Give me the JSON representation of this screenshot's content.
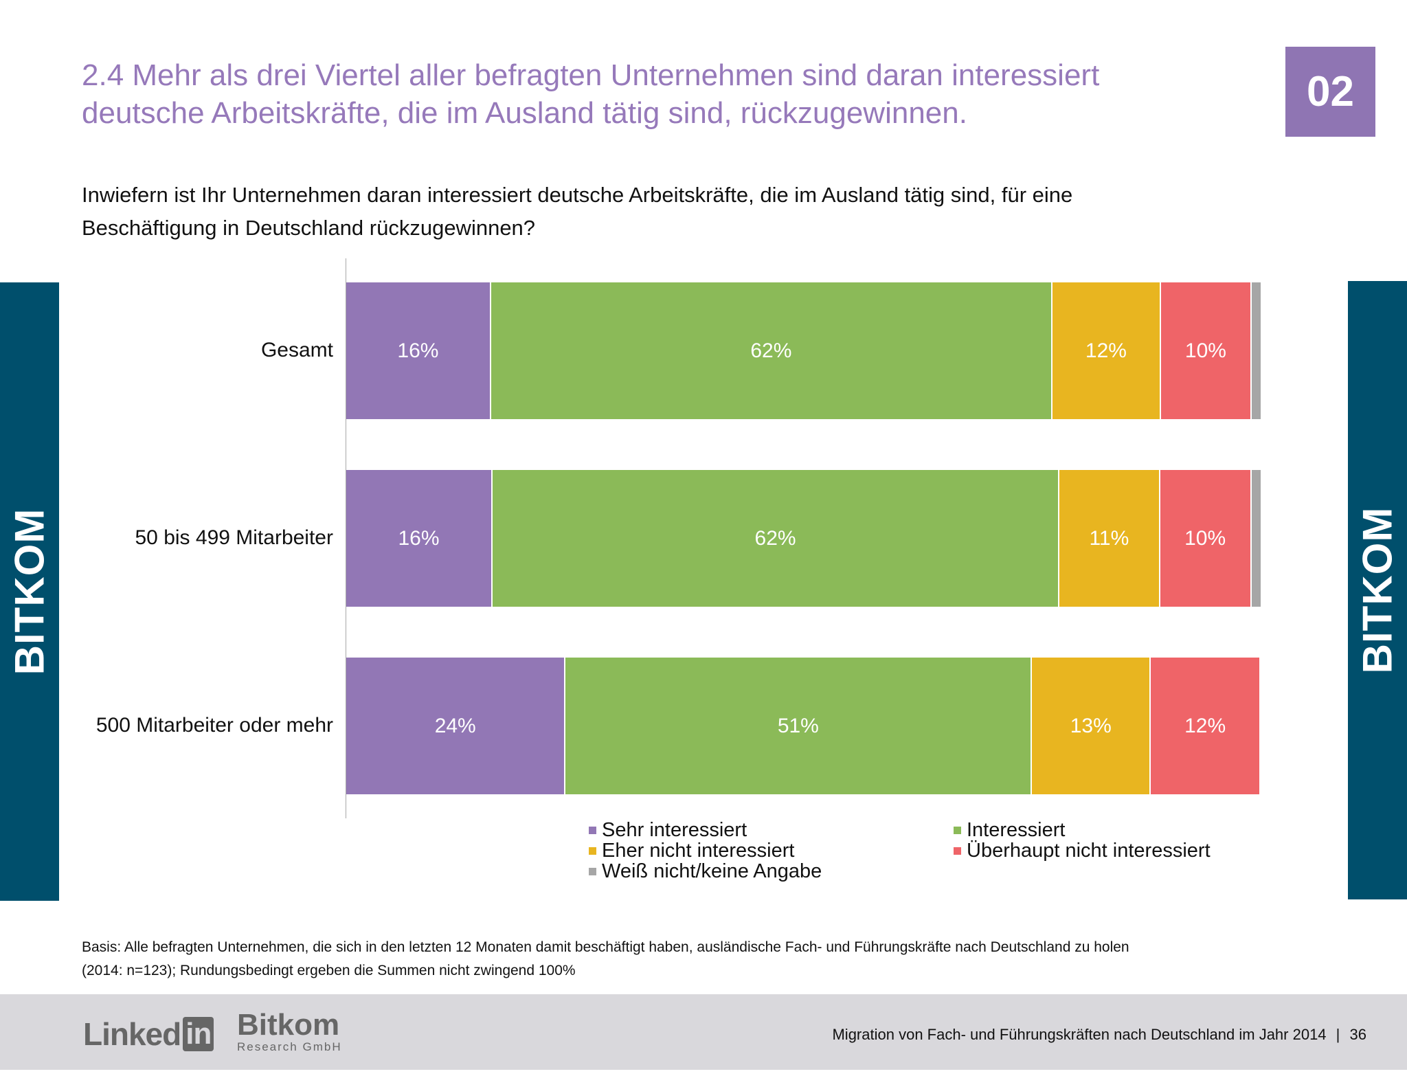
{
  "header": {
    "title_line1": "2.4 Mehr als drei Viertel aller befragten Unternehmen sind daran interessiert",
    "title_line2": "deutsche Arbeitskräfte, die im Ausland tätig sind, rückzugewinnen.",
    "badge": "02"
  },
  "question_line1": "Inwiefern ist Ihr Unternehmen daran interessiert deutsche Arbeitskräfte, die im Ausland tätig sind, für eine",
  "question_line2": "Beschäftigung in Deutschland rückzugewinnen?",
  "sidebar_left": "BITKOM",
  "sidebar_right": "BITKOM",
  "chart_data": {
    "type": "bar",
    "orientation": "horizontal-stacked",
    "categories": [
      "Gesamt",
      "50 bis 499 Mitarbeiter",
      "500 Mitarbeiter oder mehr"
    ],
    "series": [
      {
        "name": "Sehr interessiert",
        "color": "#9277b5",
        "values": [
          16,
          16,
          24
        ],
        "labels": [
          "16%",
          "16%",
          "24%"
        ]
      },
      {
        "name": "Interessiert",
        "color": "#8bba58",
        "values": [
          62,
          62,
          51
        ],
        "labels": [
          "62%",
          "62%",
          "51%"
        ]
      },
      {
        "name": "Eher nicht interessiert",
        "color": "#e8b520",
        "values": [
          12,
          11,
          13
        ],
        "labels": [
          "12%",
          "11%",
          "13%"
        ]
      },
      {
        "name": "Überhaupt nicht interessiert",
        "color": "#ef6468",
        "values": [
          10,
          10,
          12
        ],
        "labels": [
          "10%",
          "10%",
          "12%"
        ]
      },
      {
        "name": "Weiß nicht/keine Angabe",
        "color": "#a6a6a6",
        "values": [
          1,
          1,
          0
        ],
        "labels": [
          "",
          "",
          ""
        ]
      }
    ],
    "legend_placement": "bottom",
    "grid": false
  },
  "footnote_line1": "Basis: Alle befragten Unternehmen, die sich in den letzten 12 Monaten damit beschäftigt haben, ausländische Fach- und Führungskräfte nach Deutschland zu holen",
  "footnote_line2": "(2014: n=123); Rundungsbedingt ergeben die Summen nicht zwingend 100%",
  "footer": {
    "logo_linkedin": "LinkedIn",
    "logo_bitkom": "Bitkom",
    "logo_bitkom_sub": "Research GmbH",
    "report_title": "Migration von Fach- und Führungskräften nach Deutschland im Jahr 2014",
    "separator": "|",
    "page_number": "36"
  }
}
